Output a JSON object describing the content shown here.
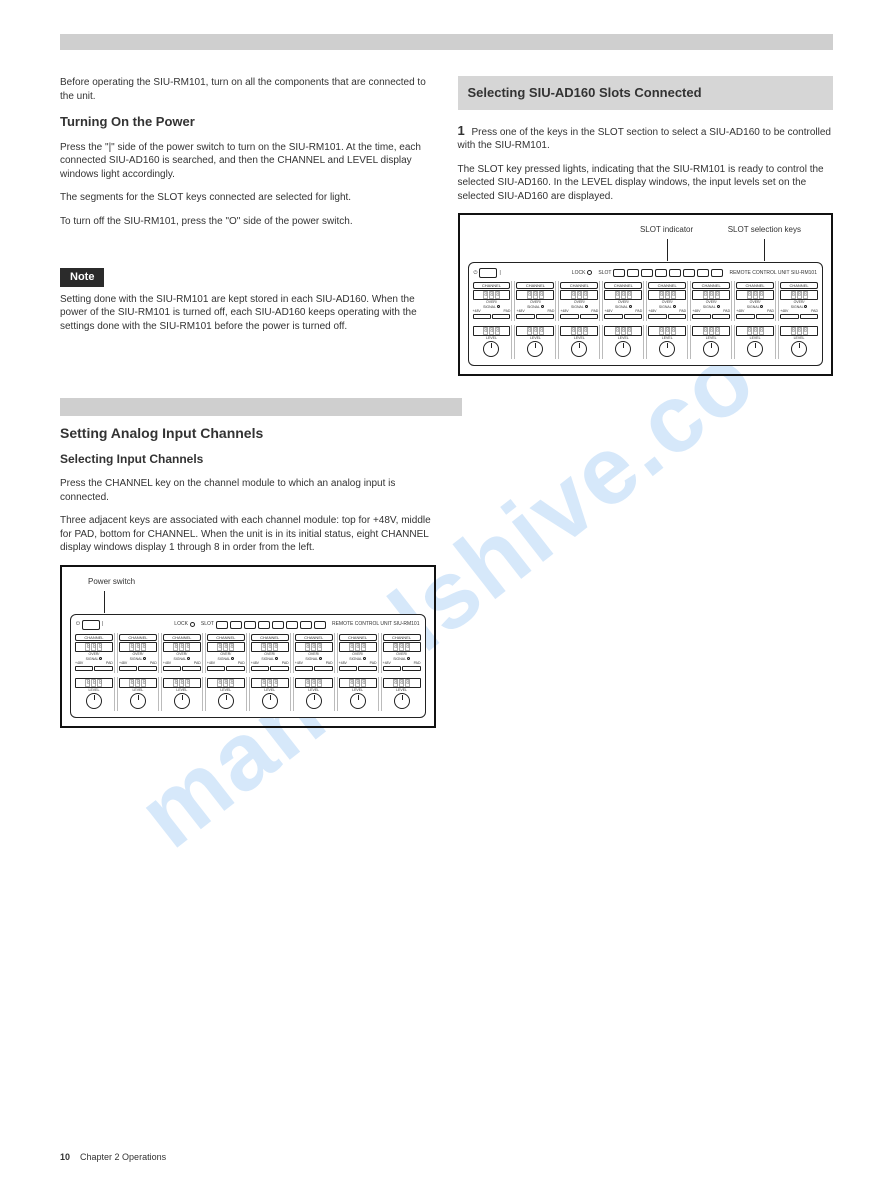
{
  "watermark": "manualshive.co",
  "header_bar_color": "#cfcfcf",
  "col_left": {
    "intro": "Before operating the SIU-RM101, turn on all the components that are connected to the unit.",
    "s1_title": "Turning On the Power",
    "s1_body": "Press the \"|\" side of the power switch to turn on the SIU-RM101. At the time, each connected SIU-AD160 is searched, and then the CHANNEL and LEVEL display windows light accordingly.",
    "s1_sub": "The segments for the SLOT keys connected are selected for light.",
    "s1_off": "To turn off the SIU-RM101, press the \"O\" side of the power switch.",
    "note_label": "Note",
    "note_body": "Setting done with the SIU-RM101 are kept stored in each SIU-AD160. When the power of the SIU-RM101 is turned off, each SIU-AD160 keeps operating with the settings done with the SIU-RM101 before the power is turned off."
  },
  "col_right": {
    "box_title": "Selecting SIU-AD160 Slots Connected",
    "step_num": "1",
    "step_body": "Press one of the keys in the SLOT section to select a SIU-AD160 to be controlled with the SIU-RM101.",
    "step_sub": "The SLOT key pressed lights, indicating that the SIU-RM101 is ready to control the selected SIU-AD160. In the LEVEL display windows, the input levels set on the selected SIU-AD160 are displayed.",
    "pointer1": "SLOT indicator",
    "pointer2": "SLOT selection keys"
  },
  "section2": {
    "title": "Setting Analog Input Channels",
    "sel_h": "Selecting Input Channels",
    "sel_p": "Press the CHANNEL key on the channel module to which an analog input is connected.",
    "sel_sub": "Three adjacent keys are associated with each channel module: top for +48V, middle for PAD, bottom for CHANNEL. When the unit is in its initial status, eight CHANNEL display windows display 1 through 8 in order from the left.",
    "pointer": "Power switch"
  },
  "device": {
    "title": "REMOTE CONTROL UNIT   SIU-RM101",
    "lock": "LOCK",
    "slot": "SLOT",
    "channel_hdr": "CHANNEL",
    "over": "OVER/",
    "signal": "SIGNAL",
    "p48": "+48V",
    "pad": "PAD",
    "level": "LEVEL",
    "seg_glyph": "8",
    "pwr_on": "|",
    "pwr_off": "O",
    "pwr_icon": "⏻"
  },
  "footer": {
    "page": "10",
    "chapter": "Chapter 2  Operations"
  },
  "colors": {
    "text": "#333333",
    "border": "#111111",
    "bar": "#cfcfcf",
    "watermark": "rgba(70,150,230,0.22)"
  }
}
